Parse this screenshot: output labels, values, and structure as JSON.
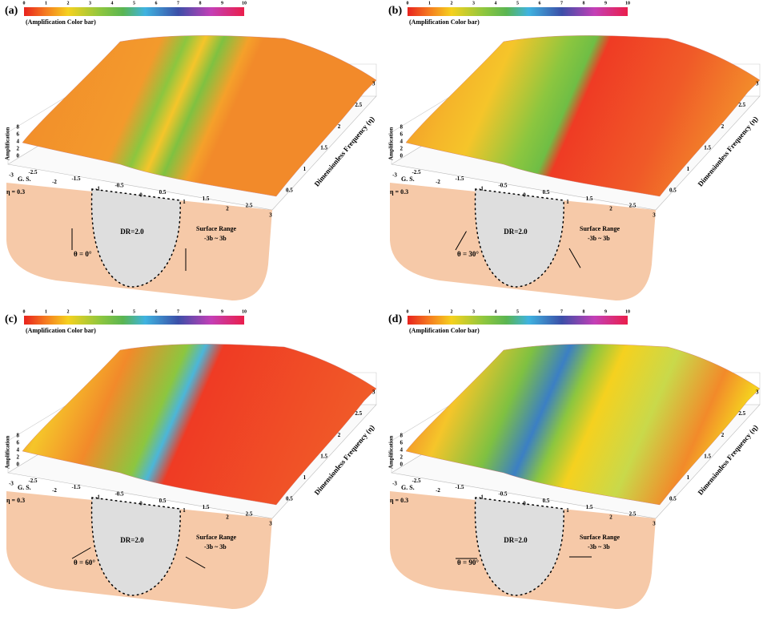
{
  "colorbar": {
    "title": "(Amplification Color bar)",
    "ticks": [
      0,
      1,
      2,
      3,
      4,
      5,
      6,
      7,
      8,
      9,
      10
    ]
  },
  "axes": {
    "z_label": "Amplification",
    "z_ticks": [
      0,
      2,
      4,
      6,
      8
    ],
    "x_ticks": [
      -3,
      -2.5,
      -2,
      -1.5,
      -1,
      -0.5,
      0,
      0.5,
      1,
      1.5,
      2,
      2.5,
      3
    ],
    "y_label": "Dimensionless Frequency (η)",
    "y_ticks": [
      0.5,
      1,
      1.5,
      2,
      2.5,
      3
    ]
  },
  "annotations": {
    "ground_surface": "G. S.",
    "eta": "η = 0.3",
    "depth_ratio": "DR=2.0",
    "range": "Surface Range",
    "range_value": "-3b ~ 3b"
  },
  "panels": [
    {
      "label": "(a)",
      "theta": "θ = 0°"
    },
    {
      "label": "(b)",
      "theta": "θ = 30°"
    },
    {
      "label": "(c)",
      "theta": "θ = 60°"
    },
    {
      "label": "(d)",
      "theta": "θ = 90°"
    }
  ]
}
